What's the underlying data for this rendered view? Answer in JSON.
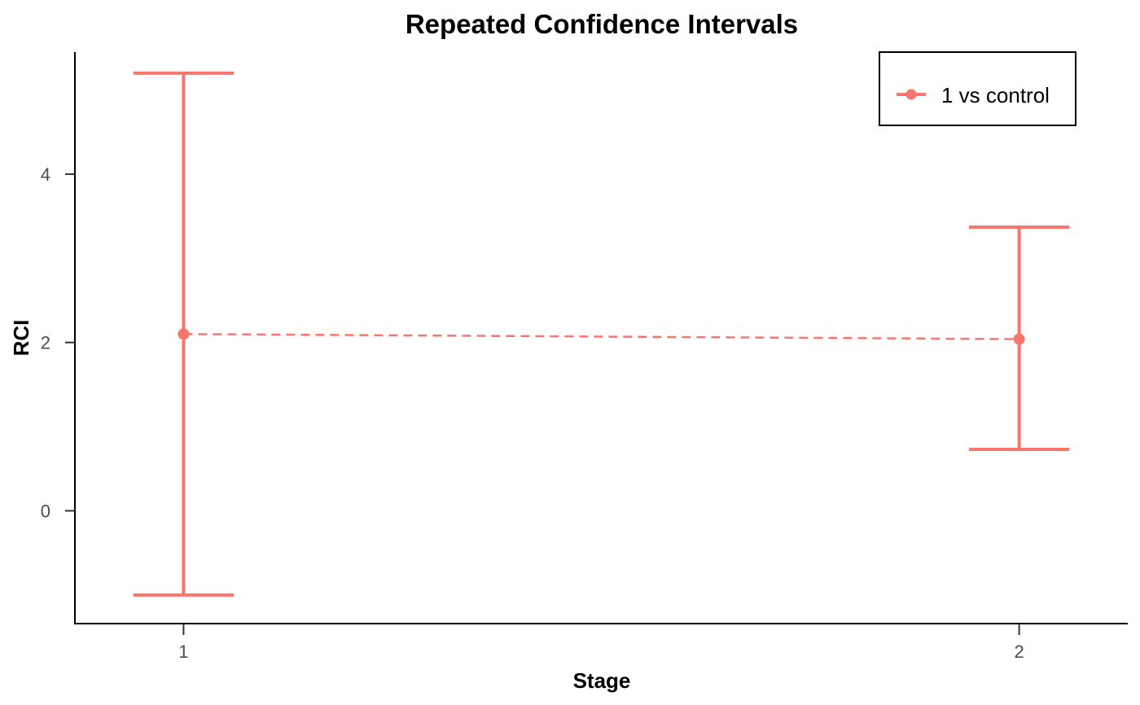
{
  "chart_data": {
    "type": "errorbar",
    "title": "Repeated Confidence Intervals",
    "xlabel": "Stage",
    "ylabel": "RCI",
    "x_ticks": [
      "1",
      "2"
    ],
    "y_ticks": [
      "0",
      "2",
      "4"
    ],
    "xlim": [
      0.87,
      2.13
    ],
    "ylim": [
      -1.34,
      5.45
    ],
    "grid": false,
    "legend_position": "top-right",
    "series": [
      {
        "name": "1 vs control",
        "color": "#F8766D",
        "line_style": "dashed",
        "points": [
          {
            "x": 1,
            "estimate": 2.1,
            "lower": -1.0,
            "upper": 5.2
          },
          {
            "x": 2,
            "estimate": 2.04,
            "lower": 0.73,
            "upper": 3.37
          }
        ]
      }
    ]
  }
}
